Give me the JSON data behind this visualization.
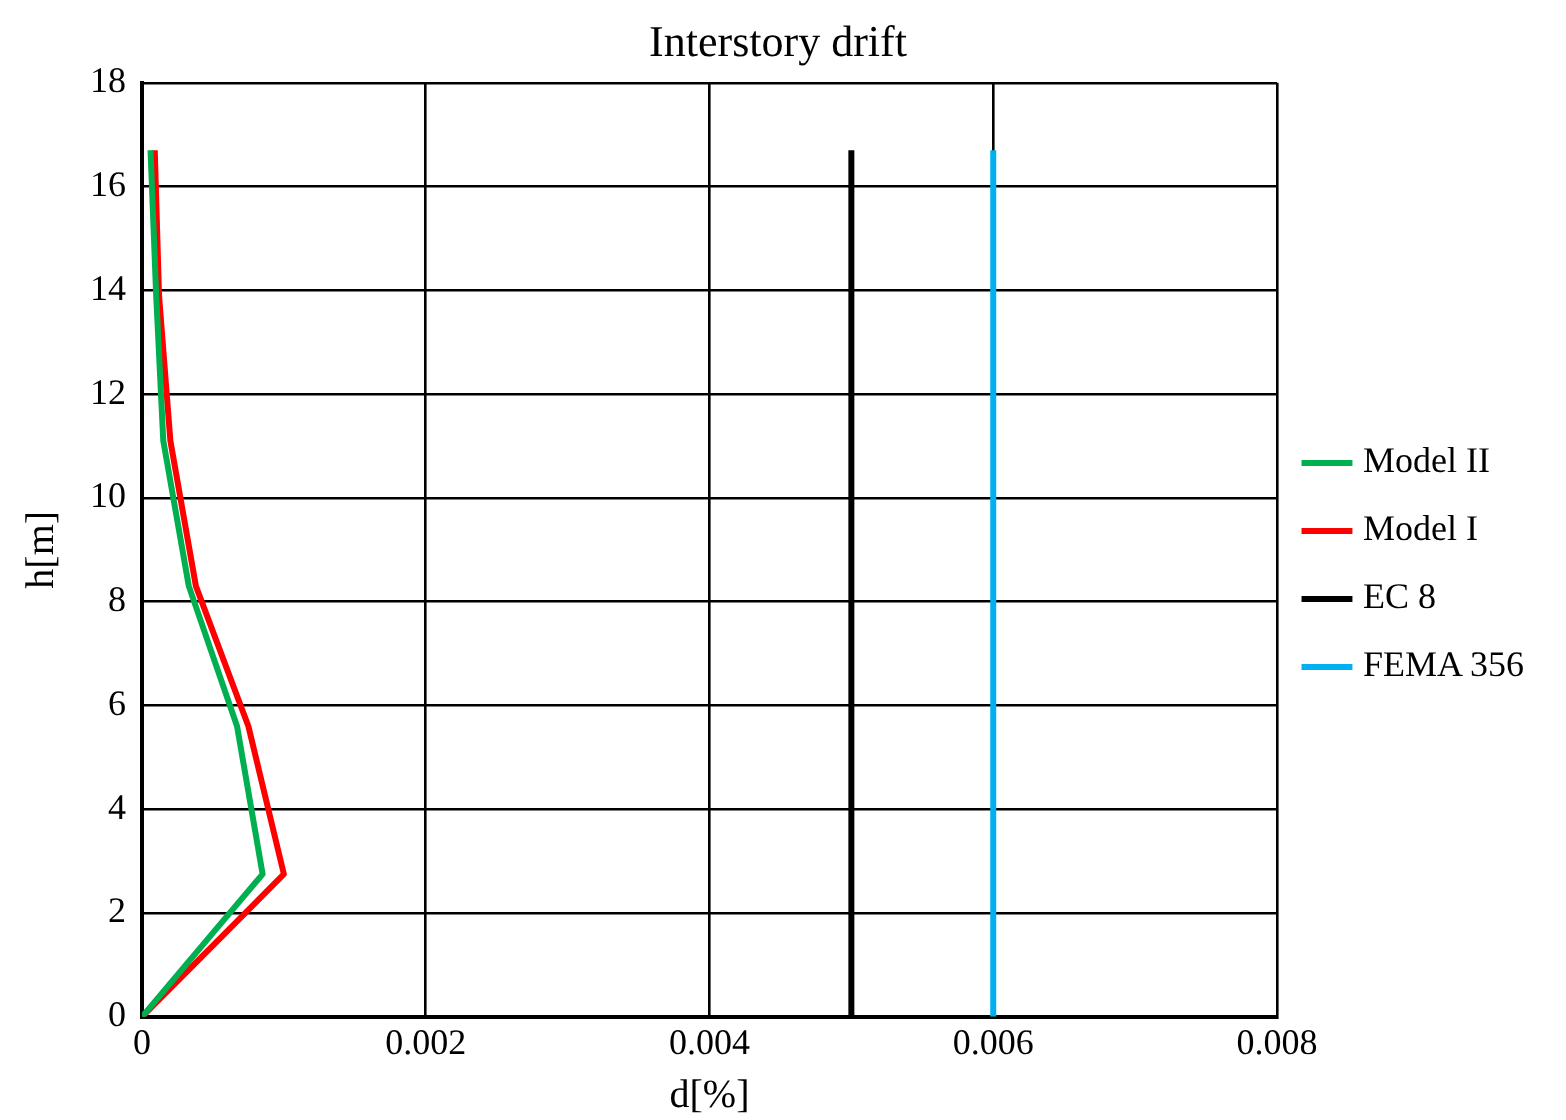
{
  "chart_data": {
    "type": "line",
    "title": "Interstory drift",
    "xlabel": "d[%]",
    "ylabel": "h[m]",
    "xlim": [
      0,
      0.008
    ],
    "xticks": [
      0,
      0.002,
      0.004,
      0.006,
      0.008
    ],
    "ylim": [
      0,
      18
    ],
    "yticks": [
      0,
      2,
      4,
      6,
      8,
      10,
      12,
      14,
      16,
      18
    ],
    "grid": true,
    "legend": "right",
    "marker": "none",
    "line_style": "solid",
    "series": [
      {
        "name": "Model II",
        "color": "#00b050",
        "x": [
          0,
          0.00085,
          0.00067,
          0.00033,
          0.00015,
          0.0001,
          6e-05
        ],
        "values": [
          0,
          2.75,
          5.6,
          8.3,
          11.1,
          13.9,
          16.7
        ]
      },
      {
        "name": "Model I",
        "color": "#ff0000",
        "x": [
          0,
          0.001,
          0.00075,
          0.00038,
          0.0002,
          0.00012,
          9e-05
        ],
        "values": [
          0,
          2.75,
          5.6,
          8.3,
          11.1,
          13.9,
          16.7
        ]
      },
      {
        "name": "EC 8",
        "color": "#000000",
        "x": [
          0.005,
          0.005
        ],
        "values": [
          0,
          16.7
        ]
      },
      {
        "name": "FEMA 356",
        "color": "#00b0f0",
        "x": [
          0.006,
          0.006
        ],
        "values": [
          0,
          16.7
        ]
      }
    ]
  }
}
